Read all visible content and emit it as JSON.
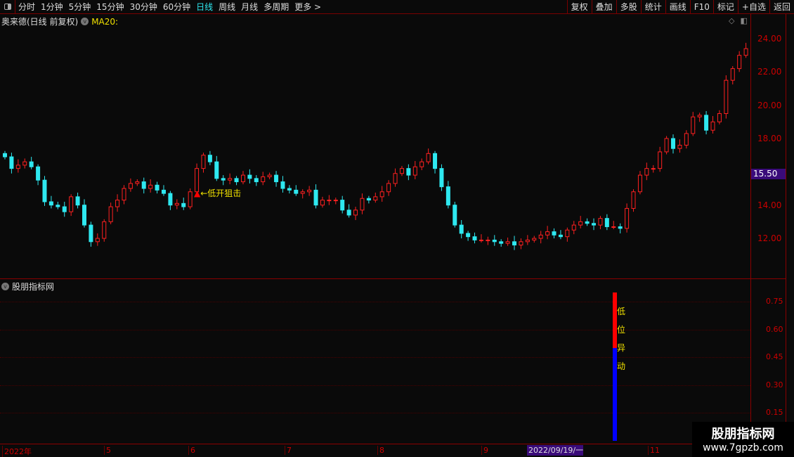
{
  "toolbar": {
    "periods": [
      "分时",
      "1分钟",
      "5分钟",
      "15分钟",
      "30分钟",
      "60分钟",
      "日线",
      "周线",
      "月线",
      "多周期",
      "更多 >"
    ],
    "active": "日线",
    "right_buttons": [
      "复权",
      "叠加",
      "多股",
      "统计",
      "画线",
      "F10",
      "标记",
      "+自选",
      "返回"
    ]
  },
  "header": {
    "title": "奥来德(日线 前复权)",
    "ma_label": "MA20:"
  },
  "price_axis": {
    "labels": [
      "24.00",
      "22.00",
      "20.00",
      "18.00",
      "14.00",
      "12.00"
    ],
    "current_price": "15.50"
  },
  "colors": {
    "up": "#ff2020",
    "down": "#2ee8f0",
    "axis": "#cc0000",
    "signal_red": "#ff0000",
    "signal_blue": "#0000ff"
  },
  "candles_close": [
    16.9,
    16.2,
    16.4,
    16.6,
    16.3,
    15.5,
    14.2,
    14.0,
    13.9,
    13.6,
    14.5,
    14.0,
    12.8,
    11.8,
    12.0,
    13.0,
    13.9,
    14.3,
    15.0,
    15.3,
    15.4,
    15.0,
    15.2,
    14.9,
    14.7,
    14.0,
    14.1,
    13.9,
    14.8,
    16.2,
    17.0,
    16.6,
    15.6,
    15.5,
    15.6,
    15.4,
    15.8,
    15.6,
    15.4,
    15.7,
    15.8,
    15.4,
    15.0,
    14.9,
    14.7,
    14.8,
    14.9,
    14.0,
    14.3,
    14.3,
    14.3,
    13.7,
    13.4,
    13.7,
    14.4,
    14.3,
    14.5,
    14.8,
    15.3,
    15.9,
    16.2,
    15.8,
    16.3,
    16.6,
    17.1,
    16.2,
    15.1,
    14.0,
    12.8,
    12.3,
    12.1,
    11.9,
    11.9,
    11.9,
    11.8,
    11.7,
    11.8,
    11.6,
    11.8,
    11.9,
    12.0,
    12.2,
    12.4,
    12.2,
    12.1,
    12.5,
    12.8,
    13.0,
    12.9,
    12.8,
    13.2,
    12.7,
    12.7,
    12.6,
    13.8,
    14.8,
    15.8,
    16.2,
    16.2,
    17.2,
    18.0,
    17.4,
    17.6,
    18.3,
    19.3,
    19.4,
    18.5,
    19.0,
    19.5,
    21.5,
    22.2,
    23.0,
    23.4
  ],
  "annotation": {
    "text": "←低开狙击"
  },
  "indicator": {
    "title": "股朋指标网",
    "axis_labels": [
      "0.75",
      "0.60",
      "0.45",
      "0.30",
      "0.15"
    ],
    "signal_chars": [
      "低",
      "位",
      "异",
      "动"
    ],
    "bar_top": 0.8,
    "bar_split": 0.5
  },
  "date_axis": {
    "labels": [
      "2022年",
      "5",
      "6",
      "7",
      "8",
      "9",
      "11"
    ],
    "selected": "2022/09/19/一"
  },
  "watermark": {
    "line1": "股朋指标网",
    "line2": "www.7gpzb.com"
  }
}
